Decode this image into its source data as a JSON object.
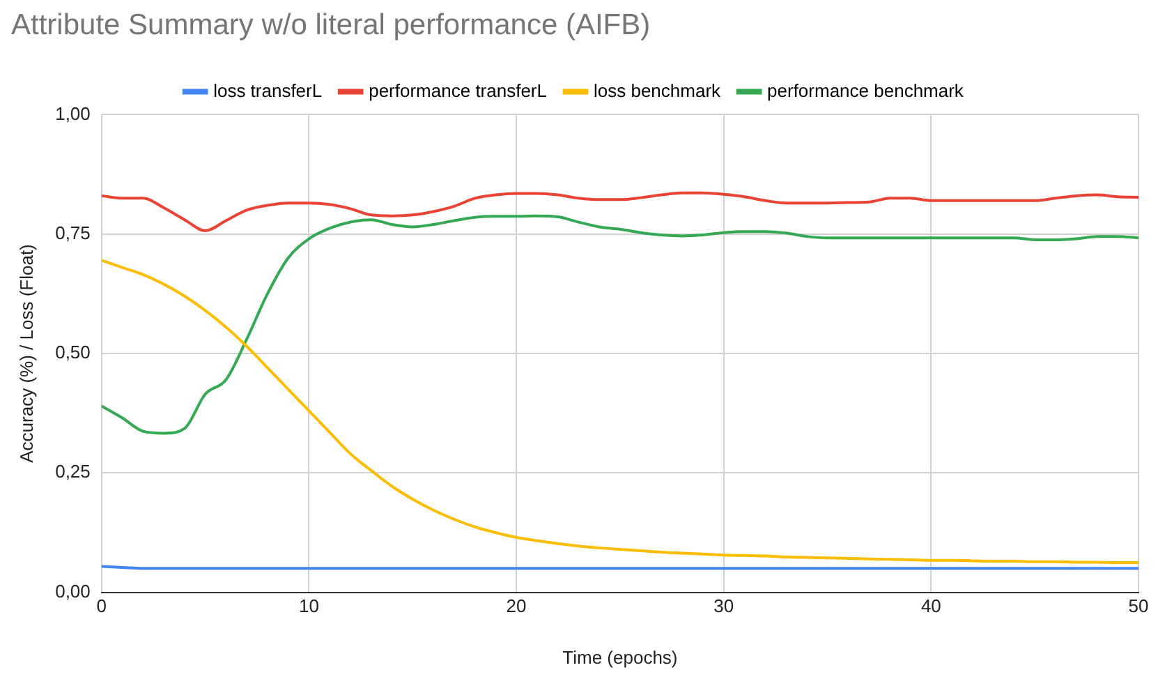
{
  "chart_data": {
    "type": "line",
    "title": "Attribute Summary w/o literal performance (AIFB)",
    "xlabel": "Time (epochs)",
    "ylabel": "Accuracy (%) / Loss (Float)",
    "x": [
      0,
      1,
      2,
      3,
      4,
      5,
      6,
      7,
      8,
      9,
      10,
      11,
      12,
      13,
      14,
      15,
      16,
      17,
      18,
      19,
      20,
      21,
      22,
      23,
      24,
      25,
      26,
      27,
      28,
      29,
      30,
      31,
      32,
      33,
      34,
      35,
      36,
      37,
      38,
      39,
      40,
      41,
      42,
      43,
      44,
      45,
      46,
      47,
      48,
      49,
      50
    ],
    "series": [
      {
        "name": "loss transferL",
        "color": "#4285f4",
        "values": [
          0.054,
          0.052,
          0.05,
          0.05,
          0.05,
          0.05,
          0.05,
          0.05,
          0.05,
          0.05,
          0.05,
          0.05,
          0.05,
          0.05,
          0.05,
          0.05,
          0.05,
          0.05,
          0.05,
          0.05,
          0.05,
          0.05,
          0.05,
          0.05,
          0.05,
          0.05,
          0.05,
          0.05,
          0.05,
          0.05,
          0.05,
          0.05,
          0.05,
          0.05,
          0.05,
          0.05,
          0.05,
          0.05,
          0.05,
          0.05,
          0.05,
          0.05,
          0.05,
          0.05,
          0.05,
          0.05,
          0.05,
          0.05,
          0.05,
          0.05,
          0.05
        ]
      },
      {
        "name": "performance transferL",
        "color": "#ea4335",
        "values": [
          0.83,
          0.825,
          0.825,
          0.805,
          0.78,
          0.757,
          0.778,
          0.8,
          0.81,
          0.815,
          0.815,
          0.812,
          0.803,
          0.79,
          0.788,
          0.79,
          0.797,
          0.808,
          0.825,
          0.832,
          0.835,
          0.835,
          0.832,
          0.825,
          0.822,
          0.822,
          0.826,
          0.832,
          0.836,
          0.836,
          0.833,
          0.828,
          0.82,
          0.815,
          0.815,
          0.815,
          0.816,
          0.817,
          0.825,
          0.825,
          0.82,
          0.82,
          0.82,
          0.82,
          0.82,
          0.82,
          0.825,
          0.83,
          0.832,
          0.828,
          0.827
        ]
      },
      {
        "name": "loss benchmark",
        "color": "#fbbc04",
        "values": [
          0.695,
          0.68,
          0.665,
          0.645,
          0.62,
          0.59,
          0.555,
          0.515,
          0.47,
          0.425,
          0.38,
          0.335,
          0.29,
          0.255,
          0.222,
          0.195,
          0.172,
          0.153,
          0.137,
          0.125,
          0.115,
          0.108,
          0.102,
          0.097,
          0.093,
          0.09,
          0.087,
          0.084,
          0.082,
          0.08,
          0.078,
          0.077,
          0.076,
          0.074,
          0.073,
          0.072,
          0.071,
          0.07,
          0.069,
          0.068,
          0.067,
          0.067,
          0.066,
          0.065,
          0.065,
          0.064,
          0.064,
          0.063,
          0.063,
          0.062,
          0.062
        ]
      },
      {
        "name": "performance benchmark",
        "color": "#34a853",
        "values": [
          0.39,
          0.365,
          0.337,
          0.333,
          0.343,
          0.415,
          0.445,
          0.53,
          0.625,
          0.7,
          0.74,
          0.762,
          0.775,
          0.78,
          0.77,
          0.765,
          0.77,
          0.778,
          0.785,
          0.787,
          0.787,
          0.788,
          0.786,
          0.775,
          0.765,
          0.76,
          0.753,
          0.748,
          0.746,
          0.748,
          0.753,
          0.755,
          0.755,
          0.752,
          0.745,
          0.742,
          0.742,
          0.742,
          0.742,
          0.742,
          0.742,
          0.742,
          0.742,
          0.742,
          0.742,
          0.738,
          0.738,
          0.74,
          0.745,
          0.745,
          0.742
        ]
      }
    ],
    "xlim": [
      0,
      50
    ],
    "xticks": [
      0,
      10,
      20,
      30,
      40,
      50
    ],
    "ylim": [
      0,
      1
    ],
    "yticks": [
      {
        "value": 0,
        "label": "0,00"
      },
      {
        "value": 0.25,
        "label": "0,25"
      },
      {
        "value": 0.5,
        "label": "0,50"
      },
      {
        "value": 0.75,
        "label": "0,75"
      },
      {
        "value": 1,
        "label": "1,00"
      }
    ],
    "grid": true,
    "legend": "top",
    "marker": "none",
    "line_style": "solid"
  }
}
